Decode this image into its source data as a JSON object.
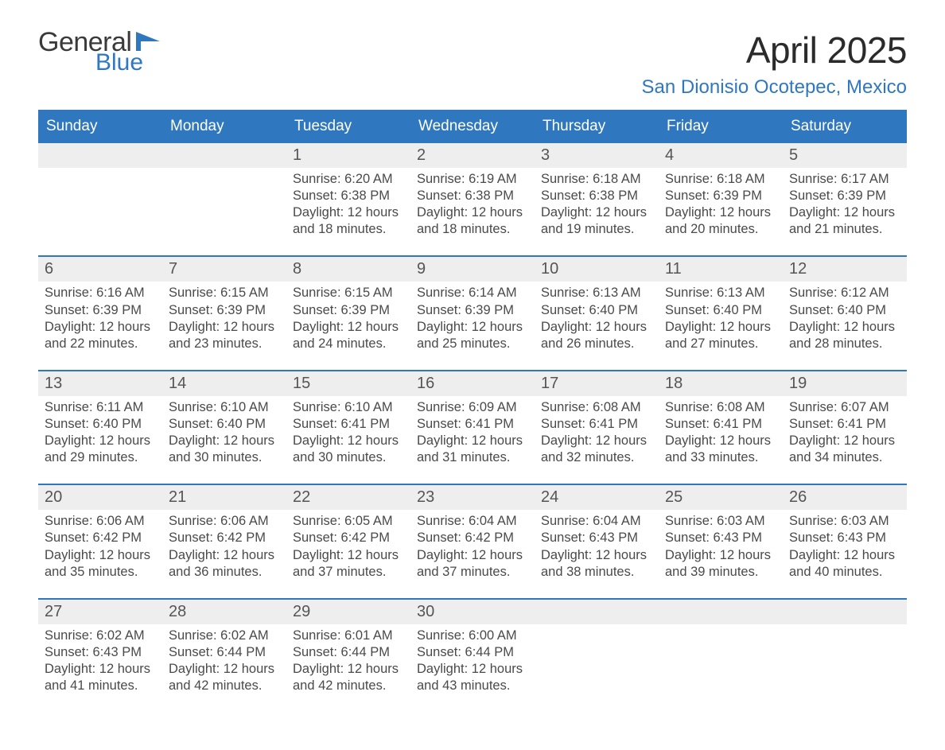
{
  "brand": {
    "word1": "General",
    "word2": "Blue",
    "accent_color": "#2f78c0"
  },
  "title": "April 2025",
  "subtitle": "San Dionisio Ocotepec, Mexico",
  "colors": {
    "header_bg": "#2f78c0",
    "header_text": "#ffffff",
    "stripe_bg": "#eeeeee",
    "rule": "#2f78c0",
    "body_text": "#4a4a4a",
    "title_text": "#2b2b2b"
  },
  "typography": {
    "title_pt": 34,
    "subtitle_pt": 18,
    "dow_pt": 14,
    "daynum_pt": 15,
    "body_pt": 12,
    "family": "Segoe UI / Arial"
  },
  "labels": {
    "sunrise_prefix": "Sunrise: ",
    "sunset_prefix": "Sunset: ",
    "daylight_prefix": "Daylight: "
  },
  "days_of_week": [
    "Sunday",
    "Monday",
    "Tuesday",
    "Wednesday",
    "Thursday",
    "Friday",
    "Saturday"
  ],
  "weeks": [
    [
      {
        "n": "",
        "sunrise": "",
        "sunset": "",
        "daylight": ""
      },
      {
        "n": "",
        "sunrise": "",
        "sunset": "",
        "daylight": ""
      },
      {
        "n": "1",
        "sunrise": "6:20 AM",
        "sunset": "6:38 PM",
        "daylight": "12 hours and 18 minutes."
      },
      {
        "n": "2",
        "sunrise": "6:19 AM",
        "sunset": "6:38 PM",
        "daylight": "12 hours and 18 minutes."
      },
      {
        "n": "3",
        "sunrise": "6:18 AM",
        "sunset": "6:38 PM",
        "daylight": "12 hours and 19 minutes."
      },
      {
        "n": "4",
        "sunrise": "6:18 AM",
        "sunset": "6:39 PM",
        "daylight": "12 hours and 20 minutes."
      },
      {
        "n": "5",
        "sunrise": "6:17 AM",
        "sunset": "6:39 PM",
        "daylight": "12 hours and 21 minutes."
      }
    ],
    [
      {
        "n": "6",
        "sunrise": "6:16 AM",
        "sunset": "6:39 PM",
        "daylight": "12 hours and 22 minutes."
      },
      {
        "n": "7",
        "sunrise": "6:15 AM",
        "sunset": "6:39 PM",
        "daylight": "12 hours and 23 minutes."
      },
      {
        "n": "8",
        "sunrise": "6:15 AM",
        "sunset": "6:39 PM",
        "daylight": "12 hours and 24 minutes."
      },
      {
        "n": "9",
        "sunrise": "6:14 AM",
        "sunset": "6:39 PM",
        "daylight": "12 hours and 25 minutes."
      },
      {
        "n": "10",
        "sunrise": "6:13 AM",
        "sunset": "6:40 PM",
        "daylight": "12 hours and 26 minutes."
      },
      {
        "n": "11",
        "sunrise": "6:13 AM",
        "sunset": "6:40 PM",
        "daylight": "12 hours and 27 minutes."
      },
      {
        "n": "12",
        "sunrise": "6:12 AM",
        "sunset": "6:40 PM",
        "daylight": "12 hours and 28 minutes."
      }
    ],
    [
      {
        "n": "13",
        "sunrise": "6:11 AM",
        "sunset": "6:40 PM",
        "daylight": "12 hours and 29 minutes."
      },
      {
        "n": "14",
        "sunrise": "6:10 AM",
        "sunset": "6:40 PM",
        "daylight": "12 hours and 30 minutes."
      },
      {
        "n": "15",
        "sunrise": "6:10 AM",
        "sunset": "6:41 PM",
        "daylight": "12 hours and 30 minutes."
      },
      {
        "n": "16",
        "sunrise": "6:09 AM",
        "sunset": "6:41 PM",
        "daylight": "12 hours and 31 minutes."
      },
      {
        "n": "17",
        "sunrise": "6:08 AM",
        "sunset": "6:41 PM",
        "daylight": "12 hours and 32 minutes."
      },
      {
        "n": "18",
        "sunrise": "6:08 AM",
        "sunset": "6:41 PM",
        "daylight": "12 hours and 33 minutes."
      },
      {
        "n": "19",
        "sunrise": "6:07 AM",
        "sunset": "6:41 PM",
        "daylight": "12 hours and 34 minutes."
      }
    ],
    [
      {
        "n": "20",
        "sunrise": "6:06 AM",
        "sunset": "6:42 PM",
        "daylight": "12 hours and 35 minutes."
      },
      {
        "n": "21",
        "sunrise": "6:06 AM",
        "sunset": "6:42 PM",
        "daylight": "12 hours and 36 minutes."
      },
      {
        "n": "22",
        "sunrise": "6:05 AM",
        "sunset": "6:42 PM",
        "daylight": "12 hours and 37 minutes."
      },
      {
        "n": "23",
        "sunrise": "6:04 AM",
        "sunset": "6:42 PM",
        "daylight": "12 hours and 37 minutes."
      },
      {
        "n": "24",
        "sunrise": "6:04 AM",
        "sunset": "6:43 PM",
        "daylight": "12 hours and 38 minutes."
      },
      {
        "n": "25",
        "sunrise": "6:03 AM",
        "sunset": "6:43 PM",
        "daylight": "12 hours and 39 minutes."
      },
      {
        "n": "26",
        "sunrise": "6:03 AM",
        "sunset": "6:43 PM",
        "daylight": "12 hours and 40 minutes."
      }
    ],
    [
      {
        "n": "27",
        "sunrise": "6:02 AM",
        "sunset": "6:43 PM",
        "daylight": "12 hours and 41 minutes."
      },
      {
        "n": "28",
        "sunrise": "6:02 AM",
        "sunset": "6:44 PM",
        "daylight": "12 hours and 42 minutes."
      },
      {
        "n": "29",
        "sunrise": "6:01 AM",
        "sunset": "6:44 PM",
        "daylight": "12 hours and 42 minutes."
      },
      {
        "n": "30",
        "sunrise": "6:00 AM",
        "sunset": "6:44 PM",
        "daylight": "12 hours and 43 minutes."
      },
      {
        "n": "",
        "sunrise": "",
        "sunset": "",
        "daylight": ""
      },
      {
        "n": "",
        "sunrise": "",
        "sunset": "",
        "daylight": ""
      },
      {
        "n": "",
        "sunrise": "",
        "sunset": "",
        "daylight": ""
      }
    ]
  ]
}
